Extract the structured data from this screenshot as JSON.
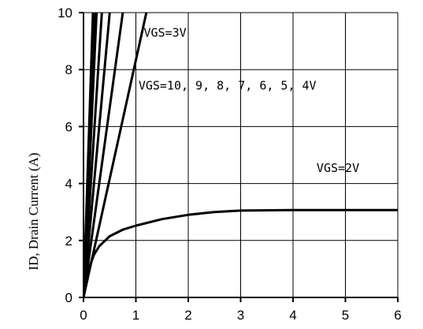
{
  "chart_data": {
    "type": "line",
    "xlabel": "",
    "ylabel": "ID, Drain Current (A)",
    "xlim": [
      0,
      6
    ],
    "ylim": [
      0,
      10
    ],
    "x_ticks": [
      "0",
      "1",
      "2",
      "3",
      "4",
      "5",
      "6"
    ],
    "y_ticks": [
      "0",
      "2",
      "4",
      "6",
      "8",
      "10"
    ],
    "grid": true,
    "series": [
      {
        "name": "VGS=10V",
        "x": [
          0,
          0.18
        ],
        "y": [
          0,
          10
        ]
      },
      {
        "name": "VGS=9V",
        "x": [
          0,
          0.2
        ],
        "y": [
          0,
          10
        ]
      },
      {
        "name": "VGS=8V",
        "x": [
          0,
          0.22
        ],
        "y": [
          0,
          10
        ]
      },
      {
        "name": "VGS=7V",
        "x": [
          0,
          0.25
        ],
        "y": [
          0,
          10
        ]
      },
      {
        "name": "VGS=6V",
        "x": [
          0,
          0.35
        ],
        "y": [
          0,
          10
        ]
      },
      {
        "name": "VGS=5V",
        "x": [
          0,
          0.5
        ],
        "y": [
          0,
          10
        ]
      },
      {
        "name": "VGS=4V",
        "x": [
          0,
          0.75
        ],
        "y": [
          0,
          10
        ]
      },
      {
        "name": "VGS=3V",
        "x": [
          0,
          1.2
        ],
        "y": [
          0,
          10
        ]
      },
      {
        "name": "VGS=2V",
        "x": [
          0,
          0.05,
          0.1,
          0.2,
          0.3,
          0.5,
          0.75,
          1.0,
          1.5,
          2.0,
          2.5,
          3.0,
          4.0,
          5.0,
          6.0
        ],
        "y": [
          0,
          0.5,
          1.0,
          1.5,
          1.8,
          2.15,
          2.38,
          2.52,
          2.75,
          2.9,
          3.0,
          3.05,
          3.07,
          3.07,
          3.07
        ]
      }
    ],
    "annotations": [
      {
        "text": "VGS=3V",
        "x": 1.15,
        "y": 9.15
      },
      {
        "text": "VGS=10, 9, 8, 7, 6, 5, 4V",
        "x": 1.05,
        "y": 7.3
      },
      {
        "text": "VGS=2V",
        "x": 4.45,
        "y": 4.4
      }
    ]
  }
}
